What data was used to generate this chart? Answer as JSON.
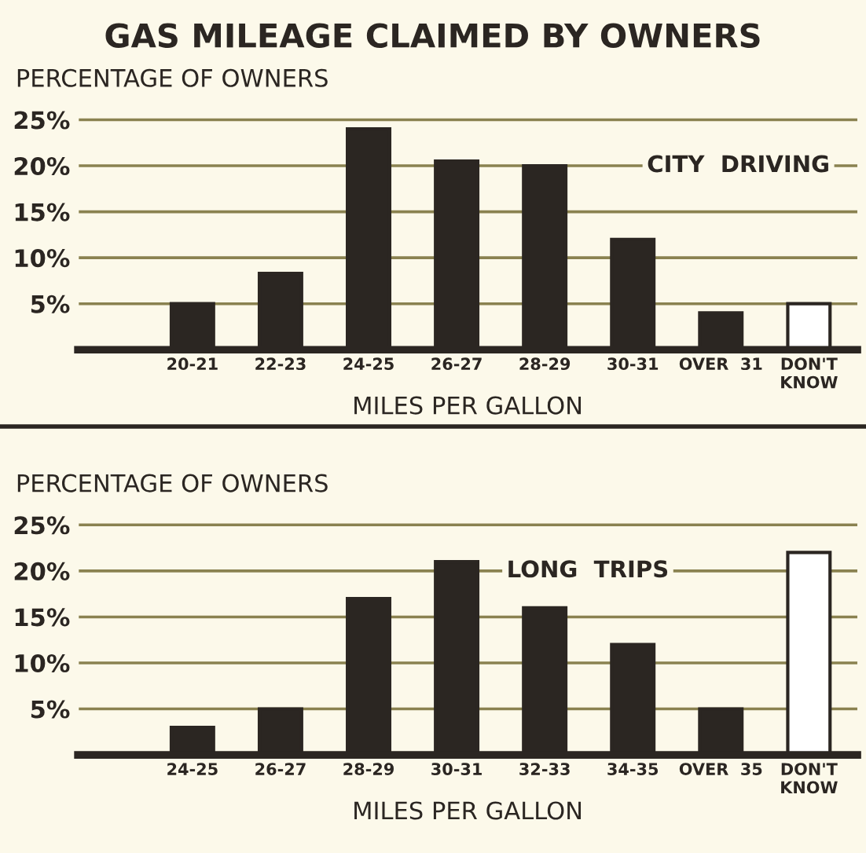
{
  "chart_data": [
    {
      "type": "bar",
      "title": "GAS MILEAGE CLAIMED BY OWNERS",
      "ylabel": "PERCENTAGE OF OWNERS",
      "xlabel": "MILES PER GALLON",
      "categories": [
        "20-21",
        "22-23",
        "24-25",
        "26-27",
        "28-29",
        "30-31",
        "OVER  31",
        "DON'T\nKNOW"
      ],
      "values": [
        5,
        8.3,
        24,
        20.5,
        20,
        12,
        4,
        5
      ],
      "colors": [
        "#2b2622",
        "#2b2622",
        "#2b2622",
        "#2b2622",
        "#2b2622",
        "#2b2622",
        "#2b2622",
        "#ffffff"
      ],
      "ylim": [
        0,
        25.5
      ],
      "yticks": [
        {
          "value": 5,
          "label": "5%"
        },
        {
          "value": 10,
          "label": "10%"
        },
        {
          "value": 15,
          "label": "15%"
        },
        {
          "value": 20,
          "label": "20%"
        },
        {
          "value": 25,
          "label": "25%"
        }
      ],
      "grid": "y",
      "annotations": [
        "CITY  DRIVING"
      ]
    },
    {
      "type": "bar",
      "ylabel": "PERCENTAGE OF OWNERS",
      "xlabel": "MILES PER GALLON",
      "categories": [
        "24-25",
        "26-27",
        "28-29",
        "30-31",
        "32-33",
        "34-35",
        "OVER  35",
        "DON'T\nKNOW"
      ],
      "values": [
        3,
        5,
        17,
        21,
        16,
        12,
        5,
        22
      ],
      "colors": [
        "#2b2622",
        "#2b2622",
        "#2b2622",
        "#2b2622",
        "#2b2622",
        "#2b2622",
        "#2b2622",
        "#ffffff"
      ],
      "ylim": [
        0,
        25.5
      ],
      "yticks": [
        {
          "value": 5,
          "label": "5%"
        },
        {
          "value": 10,
          "label": "10%"
        },
        {
          "value": 15,
          "label": "15%"
        },
        {
          "value": 20,
          "label": "20%"
        },
        {
          "value": 25,
          "label": "25%"
        }
      ],
      "grid": "y",
      "annotations": [
        "LONG  TRIPS"
      ]
    }
  ]
}
